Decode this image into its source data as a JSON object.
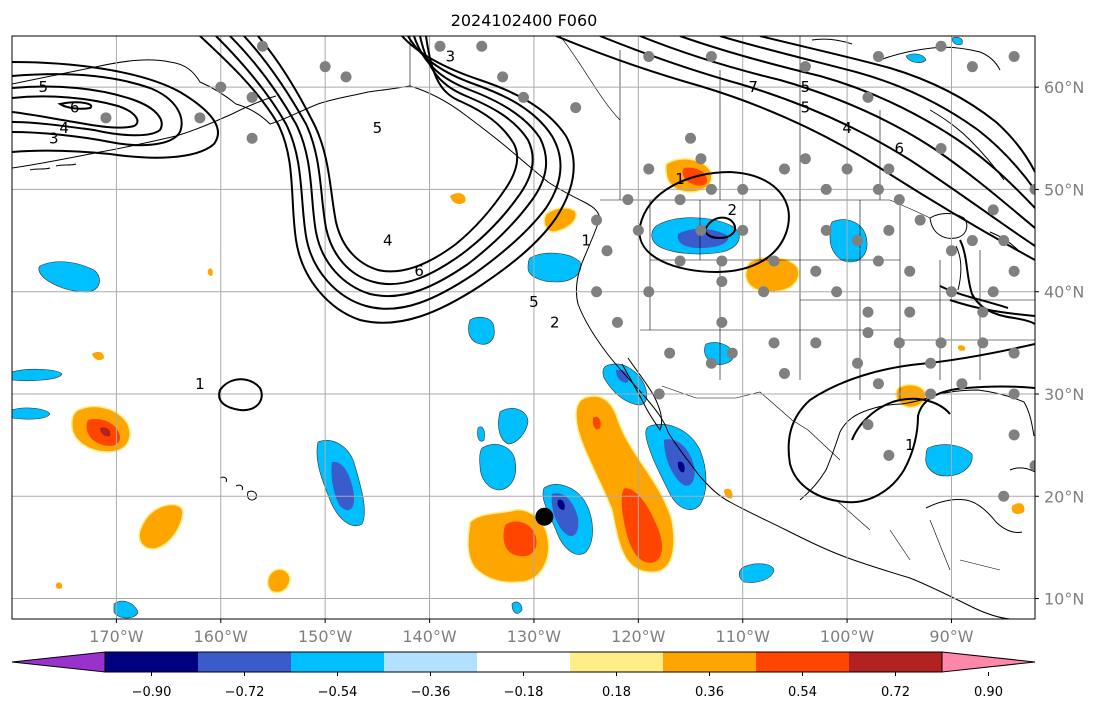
{
  "figure": {
    "title": "2024102400 F060"
  },
  "map": {
    "extent": {
      "lon_min": -180,
      "lon_max": -82,
      "lat_min": 8,
      "lat_max": 65
    },
    "lat_ticks": [
      {
        "value": 60,
        "label": "60°N"
      },
      {
        "value": 50,
        "label": "50°N"
      },
      {
        "value": 40,
        "label": "40°N"
      },
      {
        "value": 30,
        "label": "30°N"
      },
      {
        "value": 20,
        "label": "20°N"
      },
      {
        "value": 10,
        "label": "10°N"
      }
    ],
    "lon_ticks": [
      {
        "value": -170,
        "label": "170°W"
      },
      {
        "value": -160,
        "label": "160°W"
      },
      {
        "value": -150,
        "label": "150°W"
      },
      {
        "value": -140,
        "label": "140°W"
      },
      {
        "value": -130,
        "label": "130°W"
      },
      {
        "value": -120,
        "label": "120°W"
      },
      {
        "value": -110,
        "label": "110°W"
      },
      {
        "value": -100,
        "label": "100°W"
      },
      {
        "value": -90,
        "label": "90°W"
      }
    ],
    "marker": {
      "name": "storm-center",
      "lon": -129,
      "lat": 18,
      "color": "#000000"
    },
    "contour_labels": [
      {
        "text": "5",
        "lon": -177,
        "lat": 60
      },
      {
        "text": "6",
        "lon": -174,
        "lat": 58
      },
      {
        "text": "4",
        "lon": -175,
        "lat": 56
      },
      {
        "text": "3",
        "lon": -176,
        "lat": 55
      },
      {
        "text": "3",
        "lon": -138,
        "lat": 63
      },
      {
        "text": "5",
        "lon": -145,
        "lat": 56
      },
      {
        "text": "4",
        "lon": -144,
        "lat": 45
      },
      {
        "text": "6",
        "lon": -141,
        "lat": 42
      },
      {
        "text": "5",
        "lon": -130,
        "lat": 39
      },
      {
        "text": "2",
        "lon": -128,
        "lat": 37
      },
      {
        "text": "1",
        "lon": -125,
        "lat": 45
      },
      {
        "text": "1",
        "lon": -162,
        "lat": 31
      },
      {
        "text": "1",
        "lon": -116,
        "lat": 51
      },
      {
        "text": "2",
        "lon": -111,
        "lat": 48
      },
      {
        "text": "7",
        "lon": -109,
        "lat": 60
      },
      {
        "text": "5",
        "lon": -104,
        "lat": 60
      },
      {
        "text": "5",
        "lon": -104,
        "lat": 58
      },
      {
        "text": "4",
        "lon": -100,
        "lat": 56
      },
      {
        "text": "6",
        "lon": -95,
        "lat": 54
      },
      {
        "text": "1",
        "lon": -94,
        "lat": 25
      }
    ]
  },
  "stations": [
    [
      -156,
      64
    ],
    [
      -139,
      64
    ],
    [
      -150,
      62
    ],
    [
      -148,
      61
    ],
    [
      -133,
      61
    ],
    [
      -131,
      59
    ],
    [
      -126,
      58
    ],
    [
      -135,
      64
    ],
    [
      -157,
      59
    ],
    [
      -160,
      60
    ],
    [
      -162,
      57
    ],
    [
      -171,
      57
    ],
    [
      -157,
      55
    ],
    [
      -113,
      63
    ],
    [
      -119,
      63
    ],
    [
      -121,
      49
    ],
    [
      -124,
      47
    ],
    [
      -115,
      55
    ],
    [
      -114,
      53
    ],
    [
      -119,
      52
    ],
    [
      -116,
      49
    ],
    [
      -113,
      50
    ],
    [
      -114,
      46
    ],
    [
      -110,
      50
    ],
    [
      -106,
      52
    ],
    [
      -104,
      53
    ],
    [
      -102,
      50
    ],
    [
      -97,
      50
    ],
    [
      -102,
      46
    ],
    [
      -99,
      45
    ],
    [
      -95,
      49
    ],
    [
      -123,
      44
    ],
    [
      -124,
      40
    ],
    [
      -119,
      40
    ],
    [
      -120,
      46
    ],
    [
      -116,
      43
    ],
    [
      -112,
      43
    ],
    [
      -110,
      46
    ],
    [
      -107,
      43
    ],
    [
      -103,
      42
    ],
    [
      -101,
      40
    ],
    [
      -97,
      43
    ],
    [
      -94,
      42
    ],
    [
      -90,
      44
    ],
    [
      -90,
      40
    ],
    [
      -86,
      40
    ],
    [
      -122,
      37
    ],
    [
      -117,
      34
    ],
    [
      -113,
      33
    ],
    [
      -112,
      37
    ],
    [
      -107,
      35
    ],
    [
      -106,
      32
    ],
    [
      -103,
      35
    ],
    [
      -99,
      33
    ],
    [
      -97,
      31
    ],
    [
      -95,
      35
    ],
    [
      -91,
      35
    ],
    [
      -87,
      35
    ],
    [
      -84,
      34
    ],
    [
      -89,
      31
    ],
    [
      -92,
      30
    ],
    [
      -84,
      30
    ],
    [
      -118,
      30
    ],
    [
      -98,
      27
    ],
    [
      -96,
      24
    ],
    [
      -92,
      33
    ],
    [
      -82,
      23
    ],
    [
      -84,
      26
    ],
    [
      -85,
      20
    ],
    [
      -93,
      47
    ],
    [
      -96,
      46
    ],
    [
      -111,
      34
    ],
    [
      -112,
      41
    ],
    [
      -108,
      40
    ],
    [
      -98,
      38
    ],
    [
      -94,
      38
    ],
    [
      -87,
      38
    ],
    [
      -98,
      36
    ],
    [
      -100,
      52
    ],
    [
      -96,
      52
    ],
    [
      -98,
      59
    ],
    [
      -91,
      54
    ],
    [
      -88,
      62
    ],
    [
      -84,
      63
    ],
    [
      -82,
      50
    ],
    [
      -86,
      48
    ],
    [
      -85,
      45
    ],
    [
      -88,
      45
    ],
    [
      -84,
      42
    ],
    [
      -97,
      63
    ],
    [
      -91,
      64
    ],
    [
      -104,
      62
    ]
  ],
  "colorbar": {
    "tick_labels": [
      "−0.90",
      "−0.72",
      "−0.54",
      "−0.36",
      "−0.18",
      "0.18",
      "0.36",
      "0.54",
      "0.72",
      "0.90"
    ],
    "colors": [
      "#9932cc",
      "#000080",
      "#3a5bcc",
      "#00bfff",
      "#b3e0ff",
      "#ffffff",
      "#ffee88",
      "#ffa500",
      "#ff4500",
      "#b22222",
      "#ff88aa"
    ],
    "under_color": "#9932cc",
    "over_color": "#ff88aa"
  },
  "fills": {
    "orange": "#ffa500",
    "red": "#ff4500",
    "darkred": "#b22222",
    "cyan": "#00bfff",
    "blue": "#3a5bcc",
    "navy": "#000080",
    "yellow": "#ffee88",
    "station": "#808080",
    "grid": "#aaaaaa"
  }
}
